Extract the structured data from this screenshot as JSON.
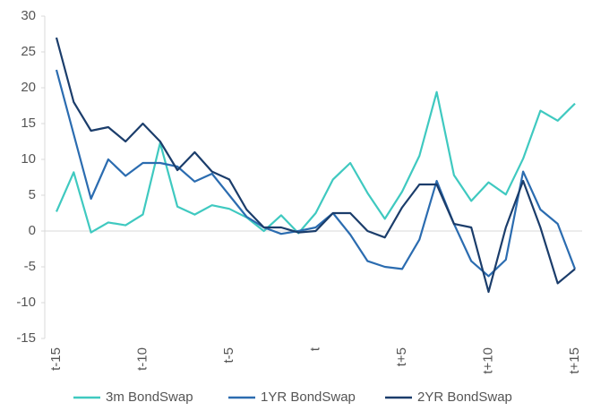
{
  "chart_data": {
    "type": "line",
    "categories": [
      "t-15",
      null,
      null,
      null,
      null,
      "t-10",
      null,
      null,
      null,
      null,
      "t-5",
      null,
      null,
      null,
      null,
      "t",
      null,
      null,
      null,
      null,
      "t+5",
      null,
      null,
      null,
      null,
      "t+10",
      null,
      null,
      null,
      null,
      "t+15"
    ],
    "series": [
      {
        "name": "3m BondSwap",
        "color": "#3fc9c0",
        "values": [
          2.7,
          8.2,
          -0.2,
          1.2,
          0.8,
          2.3,
          12.3,
          3.4,
          2.3,
          3.6,
          3.1,
          1.9,
          0,
          2.2,
          -0.3,
          2.5,
          7.2,
          9.5,
          5.3,
          1.7,
          5.5,
          10.5,
          19.4,
          7.8,
          4.2,
          6.8,
          5.1,
          10.1,
          16.8,
          15.4,
          17.8
        ]
      },
      {
        "name": "1YR BondSwap",
        "color": "#2b6cb0",
        "values": [
          22.5,
          13.5,
          4.5,
          10,
          7.7,
          9.5,
          9.5,
          9,
          6.9,
          8,
          5,
          2,
          0.5,
          -0.4,
          0,
          0.5,
          2.5,
          -0.5,
          -4.2,
          -5,
          -5.3,
          -1.2,
          7,
          1,
          -4.2,
          -6.3,
          -4,
          8.3,
          3,
          1,
          -5.3
        ]
      },
      {
        "name": "2YR BondSwap",
        "color": "#1b3d6b",
        "values": [
          27,
          18,
          14,
          14.5,
          12.5,
          15,
          12.5,
          8.5,
          11,
          8.3,
          7.2,
          3,
          0.5,
          0.5,
          -0.2,
          0,
          2.5,
          2.5,
          0,
          -0.9,
          3.3,
          6.5,
          6.5,
          1,
          0.5,
          -8.5,
          0.5,
          7,
          0.5,
          -7.3,
          -5.3
        ]
      }
    ],
    "ylim": [
      -15,
      30
    ],
    "yticks": [
      -15,
      -10,
      -5,
      0,
      5,
      10,
      15,
      20,
      25,
      30
    ],
    "legend": "bottom"
  }
}
